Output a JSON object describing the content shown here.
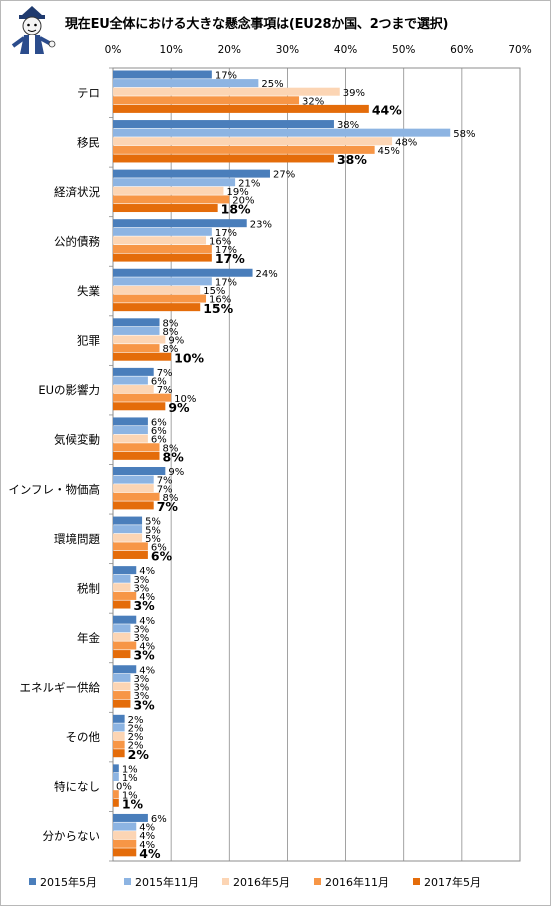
{
  "chart_data": {
    "type": "bar",
    "orientation": "horizontal",
    "title": "現在EU全体における大きな懸念事項は(EU28か国、2つまで選択)",
    "xlim": [
      0,
      70
    ],
    "x_ticks": [
      "0%",
      "10%",
      "20%",
      "30%",
      "40%",
      "50%",
      "60%",
      "70%"
    ],
    "grid": true,
    "legend_position": "bottom",
    "unit": "%",
    "categories": [
      "テロ",
      "移民",
      "経済状況",
      "公的債務",
      "失業",
      "犯罪",
      "EUの影響力",
      "気候変動",
      "インフレ・物価高",
      "環境問題",
      "税制",
      "年金",
      "エネルギー供給",
      "その他",
      "特になし",
      "分からない"
    ],
    "series": [
      {
        "name": "2015年5月",
        "color": "#4a7ebb",
        "values": [
          17,
          38,
          27,
          23,
          24,
          8,
          7,
          6,
          9,
          5,
          4,
          4,
          4,
          2,
          1,
          6
        ]
      },
      {
        "name": "2015年11月",
        "color": "#8db4e2",
        "values": [
          25,
          58,
          21,
          17,
          17,
          8,
          6,
          6,
          7,
          5,
          3,
          3,
          3,
          2,
          1,
          4
        ]
      },
      {
        "name": "2016年5月",
        "color": "#fcd5b4",
        "values": [
          39,
          48,
          19,
          16,
          15,
          9,
          7,
          6,
          7,
          5,
          3,
          3,
          3,
          2,
          0,
          4
        ]
      },
      {
        "name": "2016年11月",
        "color": "#f79646",
        "values": [
          32,
          45,
          20,
          17,
          16,
          8,
          10,
          8,
          8,
          6,
          4,
          4,
          3,
          2,
          1,
          4
        ]
      },
      {
        "name": "2017年5月",
        "color": "#e46c0a",
        "values": [
          44,
          38,
          18,
          17,
          15,
          10,
          9,
          8,
          7,
          6,
          3,
          3,
          3,
          2,
          1,
          4
        ]
      }
    ]
  }
}
